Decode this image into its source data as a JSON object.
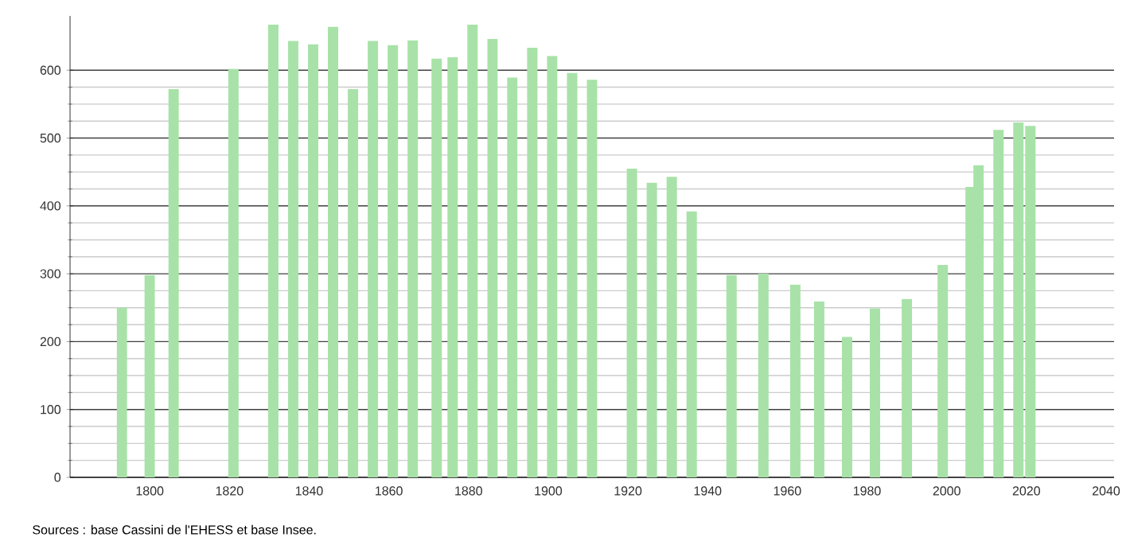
{
  "chart_data": {
    "type": "bar",
    "color": "#a8e2a8",
    "x": [
      1793,
      1800,
      1806,
      1821,
      1831,
      1836,
      1841,
      1846,
      1851,
      1856,
      1861,
      1866,
      1872,
      1876,
      1881,
      1886,
      1891,
      1896,
      1901,
      1906,
      1911,
      1921,
      1926,
      1931,
      1936,
      1946,
      1954,
      1962,
      1968,
      1975,
      1982,
      1990,
      1999,
      2006,
      2008,
      2013,
      2018,
      2021
    ],
    "values": [
      250,
      298,
      572,
      602,
      667,
      643,
      638,
      664,
      572,
      643,
      637,
      644,
      617,
      619,
      667,
      646,
      589,
      633,
      621,
      596,
      586,
      455,
      434,
      443,
      392,
      298,
      300,
      284,
      259,
      207,
      249,
      263,
      313,
      428,
      460,
      512,
      523,
      518
    ],
    "xlim": [
      1780,
      2042
    ],
    "xticks": [
      1800,
      1820,
      1840,
      1860,
      1880,
      1900,
      1920,
      1940,
      1960,
      1980,
      2000,
      2020,
      2040
    ],
    "ylim": [
      0,
      680
    ],
    "yticks": [
      0,
      100,
      200,
      300,
      400,
      500,
      600
    ],
    "grid": "y",
    "annotations": [
      "Sources : base Cassini de l'EHESS et base Insee."
    ]
  }
}
